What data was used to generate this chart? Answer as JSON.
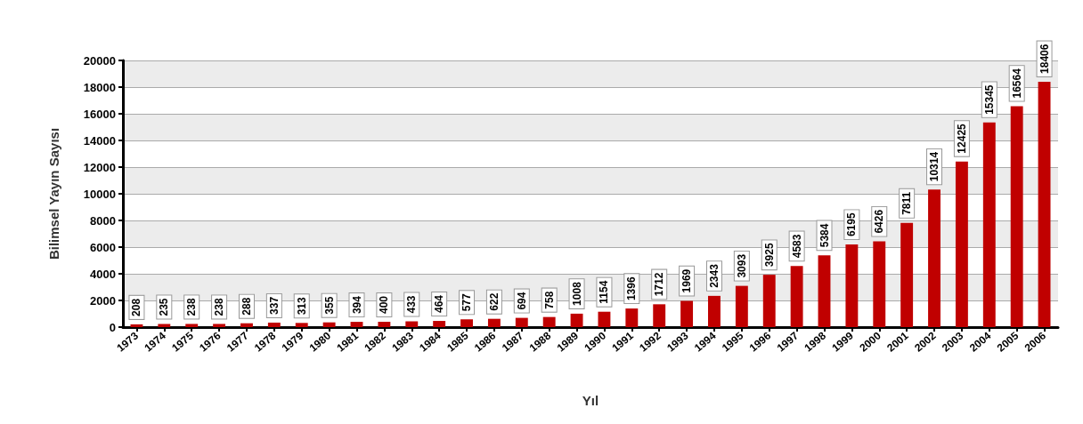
{
  "chart_data": {
    "type": "bar",
    "xlabel": "Yıl",
    "ylabel": "Bilimsel Yayın Sayısı",
    "categories": [
      "1973",
      "1974",
      "1975",
      "1976",
      "1977",
      "1978",
      "1979",
      "1980",
      "1981",
      "1982",
      "1983",
      "1984",
      "1985",
      "1986",
      "1987",
      "1988",
      "1989",
      "1990",
      "1991",
      "1992",
      "1993",
      "1994",
      "1995",
      "1996",
      "1997",
      "1998",
      "1999",
      "2000",
      "2001",
      "2002",
      "2003",
      "2004",
      "2005",
      "2006"
    ],
    "values": [
      208,
      235,
      238,
      238,
      288,
      337,
      313,
      355,
      394,
      400,
      433,
      464,
      577,
      622,
      694,
      758,
      1008,
      1154,
      1396,
      1712,
      1969,
      2343,
      3093,
      3925,
      4583,
      5384,
      6195,
      6426,
      7811,
      10314,
      12425,
      15345,
      16564,
      18406
    ],
    "color": "#c00000",
    "ylim": [
      0,
      20000
    ],
    "yticks": [
      0,
      2000,
      4000,
      6000,
      8000,
      10000,
      12000,
      14000,
      16000,
      18000,
      20000
    ],
    "grid": "y",
    "data_labels": true
  }
}
